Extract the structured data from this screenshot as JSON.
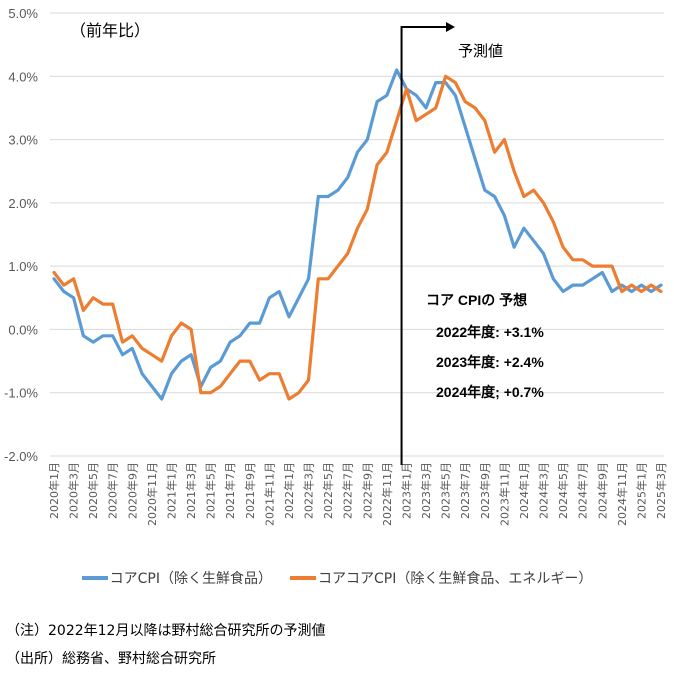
{
  "chart_data": {
    "type": "line",
    "title": "",
    "unit_label": "（前年比）",
    "xlabel": "",
    "ylabel": "",
    "ylim": [
      -2.0,
      5.0
    ],
    "yticks": [
      5.0,
      4.0,
      3.0,
      2.0,
      1.0,
      0.0,
      -1.0,
      -2.0
    ],
    "ytick_labels": [
      "5.0%",
      "4.0%",
      "3.0%",
      "2.0%",
      "1.0%",
      "0.0%",
      "-1.0%",
      "-2.0%"
    ],
    "grid": true,
    "legend_position": "bottom",
    "x": [
      "2020年1月",
      "2020年2月",
      "2020年3月",
      "2020年4月",
      "2020年5月",
      "2020年6月",
      "2020年7月",
      "2020年8月",
      "2020年9月",
      "2020年10月",
      "2020年11月",
      "2020年12月",
      "2021年1月",
      "2021年2月",
      "2021年3月",
      "2021年4月",
      "2021年5月",
      "2021年6月",
      "2021年7月",
      "2021年8月",
      "2021年9月",
      "2021年10月",
      "2021年11月",
      "2021年12月",
      "2022年1月",
      "2022年2月",
      "2022年3月",
      "2022年4月",
      "2022年5月",
      "2022年6月",
      "2022年7月",
      "2022年8月",
      "2022年9月",
      "2022年10月",
      "2022年11月",
      "2022年12月",
      "2023年1月",
      "2023年2月",
      "2023年3月",
      "2023年4月",
      "2023年5月",
      "2023年6月",
      "2023年7月",
      "2023年8月",
      "2023年9月",
      "2023年10月",
      "2023年11月",
      "2023年12月",
      "2024年1月",
      "2024年2月",
      "2024年3月",
      "2024年4月",
      "2024年5月",
      "2024年6月",
      "2024年7月",
      "2024年8月",
      "2024年9月",
      "2024年10月",
      "2024年11月",
      "2024年12月",
      "2025年1月",
      "2025年2月",
      "2025年3月"
    ],
    "xtick_labels": [
      "2020年1月",
      "2020年3月",
      "2020年5月",
      "2020年7月",
      "2020年9月",
      "2020年11月",
      "2021年1月",
      "2021年3月",
      "2021年5月",
      "2021年7月",
      "2021年9月",
      "2021年11月",
      "2022年1月",
      "2022年3月",
      "2022年5月",
      "2022年7月",
      "2022年9月",
      "2022年11月",
      "2023年1月",
      "2023年3月",
      "2023年5月",
      "2023年7月",
      "2023年9月",
      "2023年11月",
      "2024年1月",
      "2024年3月",
      "2024年5月",
      "2024年7月",
      "2024年9月",
      "2024年11月",
      "2025年1月",
      "2025年3月"
    ],
    "series": [
      {
        "name": "コアCPI（除く生鮮食品）",
        "color": "#5B9BD5",
        "values": [
          0.8,
          0.6,
          0.5,
          -0.1,
          -0.2,
          -0.1,
          -0.1,
          -0.4,
          -0.3,
          -0.7,
          -0.9,
          -1.1,
          -0.7,
          -0.5,
          -0.4,
          -0.9,
          -0.6,
          -0.5,
          -0.2,
          -0.1,
          0.1,
          0.1,
          0.5,
          0.6,
          0.2,
          0.5,
          0.8,
          2.1,
          2.1,
          2.2,
          2.4,
          2.8,
          3.0,
          3.6,
          3.7,
          4.1,
          3.8,
          3.7,
          3.5,
          3.9,
          3.9,
          3.7,
          3.2,
          2.7,
          2.2,
          2.1,
          1.8,
          1.3,
          1.6,
          1.4,
          1.2,
          0.8,
          0.6,
          0.7,
          0.7,
          0.8,
          0.9,
          0.6,
          0.7,
          0.6,
          0.7,
          0.6,
          0.7
        ]
      },
      {
        "name": "コアコアCPI（除く生鮮食品、エネルギー）",
        "color": "#ED7D31",
        "values": [
          0.9,
          0.7,
          0.8,
          0.3,
          0.5,
          0.4,
          0.4,
          -0.2,
          -0.1,
          -0.3,
          -0.4,
          -0.5,
          -0.1,
          0.1,
          0.0,
          -1.0,
          -1.0,
          -0.9,
          -0.7,
          -0.5,
          -0.5,
          -0.8,
          -0.7,
          -0.7,
          -1.1,
          -1.0,
          -0.8,
          0.8,
          0.8,
          1.0,
          1.2,
          1.6,
          1.9,
          2.6,
          2.8,
          3.3,
          3.8,
          3.3,
          3.4,
          3.5,
          4.0,
          3.9,
          3.6,
          3.5,
          3.3,
          2.8,
          3.0,
          2.5,
          2.1,
          2.2,
          2.0,
          1.7,
          1.3,
          1.1,
          1.1,
          1.0,
          1.0,
          1.0,
          0.6,
          0.7,
          0.6,
          0.7,
          0.6
        ]
      }
    ],
    "forecast_marker": {
      "label": "予測値",
      "starts_after": "2022年12月"
    },
    "annotation": {
      "title": "コア CPIの 予想",
      "lines": [
        "2022年度: +3.1%",
        "2023年度: +2.4%",
        "2024年度; +0.7%"
      ]
    }
  },
  "legend": {
    "items": [
      {
        "label": "コアCPI（除く生鮮食品）",
        "color": "#5B9BD5"
      },
      {
        "label": "コアコアCPI（除く生鮮食品、エネルギー）",
        "color": "#ED7D31"
      }
    ]
  },
  "notes": {
    "note": "（注）2022年12月以降は野村総合研究所の予測値",
    "source": "（出所）総務省、野村総合研究所"
  }
}
